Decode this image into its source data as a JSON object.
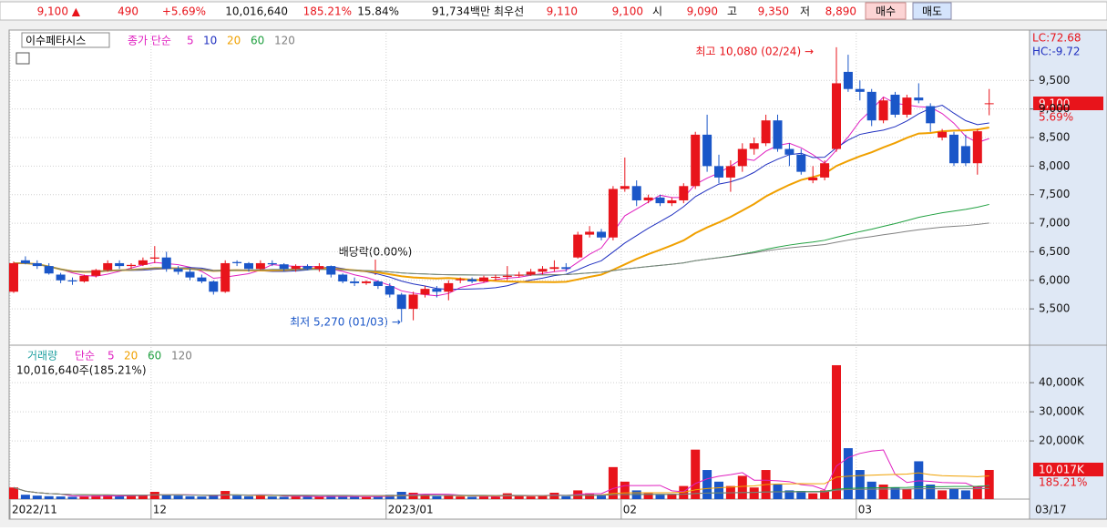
{
  "top_bar": {
    "price": "9,100 ▲",
    "change": "490",
    "change_pct": "+5.69%",
    "volume": "10,016,640",
    "volume_ratio": "185.21%",
    "turnover": "15.84%",
    "amount": "91,734백만",
    "best_label": "최우선",
    "ask": "9,110",
    "bid": "9,100",
    "open_label": "시",
    "open": "9,090",
    "high_label": "고",
    "high": "9,350",
    "low_label": "저",
    "low": "8,890",
    "buy": "매수",
    "sell": "매도"
  },
  "chart_data": {
    "type": "candlestick",
    "title": "이수페타시스",
    "ma_label": "종가 단순",
    "ma_periods": [
      5,
      10,
      20,
      60,
      120
    ],
    "ma_colors": [
      "#e020c0",
      "#2030c0",
      "#f0a000",
      "#20a040",
      "#808080"
    ],
    "up_color": "#e8141b",
    "down_color": "#1a56c8",
    "candles": [
      {
        "open": 5800,
        "high": 6330,
        "low": 5780,
        "close": 6300
      },
      {
        "open": 6350,
        "high": 6420,
        "low": 6280,
        "close": 6300
      },
      {
        "open": 6300,
        "high": 6350,
        "low": 6200,
        "close": 6250
      },
      {
        "open": 6250,
        "high": 6300,
        "low": 6100,
        "close": 6120
      },
      {
        "open": 6100,
        "high": 6130,
        "low": 5950,
        "close": 6000
      },
      {
        "open": 6000,
        "high": 6050,
        "low": 5920,
        "close": 5980
      },
      {
        "open": 5980,
        "high": 6100,
        "low": 5960,
        "close": 6080
      },
      {
        "open": 6080,
        "high": 6200,
        "low": 6050,
        "close": 6180
      },
      {
        "open": 6180,
        "high": 6350,
        "low": 6150,
        "close": 6300
      },
      {
        "open": 6300,
        "high": 6350,
        "low": 6200,
        "close": 6250
      },
      {
        "open": 6250,
        "high": 6300,
        "low": 6200,
        "close": 6270
      },
      {
        "open": 6270,
        "high": 6400,
        "low": 6250,
        "close": 6350
      },
      {
        "open": 6380,
        "high": 6600,
        "low": 6300,
        "close": 6400
      },
      {
        "open": 6400,
        "high": 6500,
        "low": 6150,
        "close": 6200
      },
      {
        "open": 6200,
        "high": 6250,
        "low": 6100,
        "close": 6150
      },
      {
        "open": 6150,
        "high": 6200,
        "low": 6000,
        "close": 6050
      },
      {
        "open": 6050,
        "high": 6100,
        "low": 5950,
        "close": 5980
      },
      {
        "open": 5980,
        "high": 6000,
        "low": 5750,
        "close": 5800
      },
      {
        "open": 5800,
        "high": 6350,
        "low": 5780,
        "close": 6300
      },
      {
        "open": 6320,
        "high": 6350,
        "low": 6250,
        "close": 6300
      },
      {
        "open": 6300,
        "high": 6320,
        "low": 6150,
        "close": 6200
      },
      {
        "open": 6200,
        "high": 6350,
        "low": 6180,
        "close": 6300
      },
      {
        "open": 6300,
        "high": 6350,
        "low": 6250,
        "close": 6280
      },
      {
        "open": 6280,
        "high": 6300,
        "low": 6150,
        "close": 6200
      },
      {
        "open": 6200,
        "high": 6280,
        "low": 6150,
        "close": 6250
      },
      {
        "open": 6250,
        "high": 6280,
        "low": 6180,
        "close": 6200
      },
      {
        "open": 6200,
        "high": 6300,
        "low": 6150,
        "close": 6250
      },
      {
        "open": 6250,
        "high": 6260,
        "low": 6050,
        "close": 6100
      },
      {
        "open": 6100,
        "high": 6120,
        "low": 5950,
        "close": 5980
      },
      {
        "open": 5980,
        "high": 6050,
        "low": 5900,
        "close": 5950
      },
      {
        "open": 5950,
        "high": 6000,
        "low": 5920,
        "close": 5980
      },
      {
        "open": 5980,
        "high": 6000,
        "low": 5850,
        "close": 5900
      },
      {
        "open": 5900,
        "high": 5950,
        "low": 5700,
        "close": 5750
      },
      {
        "open": 5750,
        "high": 5780,
        "low": 5270,
        "close": 5500
      },
      {
        "open": 5500,
        "high": 5800,
        "low": 5300,
        "close": 5750
      },
      {
        "open": 5750,
        "high": 5900,
        "low": 5700,
        "close": 5850
      },
      {
        "open": 5850,
        "high": 5900,
        "low": 5700,
        "close": 5800
      },
      {
        "open": 5800,
        "high": 6000,
        "low": 5650,
        "close": 5950
      },
      {
        "open": 6000,
        "high": 6050,
        "low": 5950,
        "close": 6020
      },
      {
        "open": 6020,
        "high": 6050,
        "low": 5950,
        "close": 5980
      },
      {
        "open": 5980,
        "high": 6080,
        "low": 5960,
        "close": 6050
      },
      {
        "open": 6050,
        "high": 6100,
        "low": 6000,
        "close": 6060
      },
      {
        "open": 6060,
        "high": 6250,
        "low": 6000,
        "close": 6080
      },
      {
        "open": 6080,
        "high": 6150,
        "low": 6050,
        "close": 6100
      },
      {
        "open": 6100,
        "high": 6200,
        "low": 6080,
        "close": 6150
      },
      {
        "open": 6150,
        "high": 6250,
        "low": 6100,
        "close": 6200
      },
      {
        "open": 6200,
        "high": 6350,
        "low": 6150,
        "close": 6230
      },
      {
        "open": 6230,
        "high": 6300,
        "low": 6150,
        "close": 6200
      },
      {
        "open": 6400,
        "high": 6850,
        "low": 6380,
        "close": 6800
      },
      {
        "open": 6800,
        "high": 6950,
        "low": 6750,
        "close": 6850
      },
      {
        "open": 6850,
        "high": 6900,
        "low": 6700,
        "close": 6750
      },
      {
        "open": 6750,
        "high": 7650,
        "low": 6700,
        "close": 7600
      },
      {
        "open": 7600,
        "high": 8150,
        "low": 7550,
        "close": 7650
      },
      {
        "open": 7650,
        "high": 7750,
        "low": 7300,
        "close": 7400
      },
      {
        "open": 7400,
        "high": 7500,
        "low": 7350,
        "close": 7450
      },
      {
        "open": 7450,
        "high": 7500,
        "low": 7300,
        "close": 7350
      },
      {
        "open": 7350,
        "high": 7450,
        "low": 7300,
        "close": 7400
      },
      {
        "open": 7400,
        "high": 7700,
        "low": 7350,
        "close": 7650
      },
      {
        "open": 7650,
        "high": 8600,
        "low": 7600,
        "close": 8550
      },
      {
        "open": 8550,
        "high": 8900,
        "low": 7900,
        "close": 8000
      },
      {
        "open": 8000,
        "high": 8200,
        "low": 7700,
        "close": 7800
      },
      {
        "open": 7800,
        "high": 8100,
        "low": 7550,
        "close": 8000
      },
      {
        "open": 8000,
        "high": 8400,
        "low": 7900,
        "close": 8300
      },
      {
        "open": 8300,
        "high": 8500,
        "low": 8200,
        "close": 8400
      },
      {
        "open": 8400,
        "high": 8900,
        "low": 8350,
        "close": 8800
      },
      {
        "open": 8800,
        "high": 8900,
        "low": 8250,
        "close": 8300
      },
      {
        "open": 8300,
        "high": 8400,
        "low": 8000,
        "close": 8200
      },
      {
        "open": 8200,
        "high": 8300,
        "low": 7850,
        "close": 7900
      },
      {
        "open": 7750,
        "high": 8000,
        "low": 7700,
        "close": 7800
      },
      {
        "open": 7800,
        "high": 8100,
        "low": 7750,
        "close": 8050
      },
      {
        "open": 8300,
        "high": 10080,
        "low": 8250,
        "close": 9450
      },
      {
        "open": 9650,
        "high": 9950,
        "low": 9300,
        "close": 9350
      },
      {
        "open": 9350,
        "high": 9500,
        "low": 9150,
        "close": 9300
      },
      {
        "open": 9300,
        "high": 9350,
        "low": 8700,
        "close": 8800
      },
      {
        "open": 8800,
        "high": 9200,
        "low": 8750,
        "close": 9150
      },
      {
        "open": 9250,
        "high": 9300,
        "low": 8850,
        "close": 8900
      },
      {
        "open": 8900,
        "high": 9250,
        "low": 8850,
        "close": 9200
      },
      {
        "open": 9200,
        "high": 9450,
        "low": 9100,
        "close": 9150
      },
      {
        "open": 9050,
        "high": 9100,
        "low": 8600,
        "close": 8750
      },
      {
        "open": 8500,
        "high": 8650,
        "low": 8450,
        "close": 8600
      },
      {
        "open": 8550,
        "high": 8600,
        "low": 8000,
        "close": 8050
      },
      {
        "open": 8350,
        "high": 8550,
        "low": 8000,
        "close": 8050
      },
      {
        "open": 8050,
        "high": 8650,
        "low": 7850,
        "close": 8610
      },
      {
        "open": 9090,
        "high": 9350,
        "low": 8890,
        "close": 9100
      }
    ],
    "ylim": [
      4880,
      10350
    ],
    "yticks": [
      {
        "value": 9500,
        "label": "9,500"
      },
      {
        "value": 9000,
        "label": "9,000"
      },
      {
        "value": 8500,
        "label": "8,500"
      },
      {
        "value": 8000,
        "label": "8,000"
      },
      {
        "value": 7500,
        "label": "7,500"
      },
      {
        "value": 7000,
        "label": "7,000"
      },
      {
        "value": 6500,
        "label": "6,500"
      },
      {
        "value": 6000,
        "label": "6,000"
      },
      {
        "value": 5500,
        "label": "5,500"
      }
    ],
    "xticks": [
      {
        "value": 0,
        "label": "2022/11"
      },
      {
        "value": 12,
        "label": "12"
      },
      {
        "value": 32,
        "label": "2023/01"
      },
      {
        "value": 52,
        "label": "02"
      },
      {
        "value": 72,
        "label": "03"
      }
    ],
    "end_date": "03/17",
    "lc_label": "LC:72.68",
    "hc_label": "HC:-9.72",
    "current_price_label": "9,100",
    "current_change_label": "5.69%",
    "annotations": [
      "최고 10,080 (02/24) →",
      "최저 5,270 (01/03) →",
      "배당락(0.00%)"
    ],
    "volume": {
      "label": "거래량",
      "ma_label": "단순",
      "ma_periods": [
        5,
        20,
        60,
        120
      ],
      "ma_colors": [
        "#e020c0",
        "#f0a000",
        "#20a040",
        "#808080"
      ],
      "values": [
        4000,
        1500,
        1200,
        1000,
        900,
        800,
        900,
        1200,
        1500,
        1000,
        1100,
        1300,
        2500,
        1500,
        1200,
        1000,
        900,
        1200,
        2800,
        1200,
        1000,
        1300,
        900,
        800,
        900,
        800,
        900,
        1000,
        900,
        800,
        700,
        900,
        1500,
        2500,
        2200,
        1500,
        1000,
        1300,
        900,
        800,
        900,
        800,
        2000,
        1000,
        900,
        1200,
        2200,
        1000,
        3000,
        2000,
        1200,
        11000,
        6000,
        3000,
        2000,
        1500,
        1800,
        4500,
        17000,
        10000,
        6000,
        4500,
        8000,
        4000,
        10000,
        5000,
        3000,
        2800,
        2000,
        3000,
        46000,
        17500,
        10000,
        6000,
        5000,
        4000,
        3500,
        13000,
        5000,
        3000,
        3500,
        3000,
        4500,
        10017
      ],
      "vlim": [
        0,
        51000
      ],
      "vticks": [
        {
          "value": 40000,
          "label": "40,000K"
        },
        {
          "value": 30000,
          "label": "30,000K"
        },
        {
          "value": 20000,
          "label": "20,000K"
        }
      ],
      "total_label": "10,016,640주(185.21%)",
      "current_label": "10,017K",
      "current_pct": "185.21%"
    }
  }
}
